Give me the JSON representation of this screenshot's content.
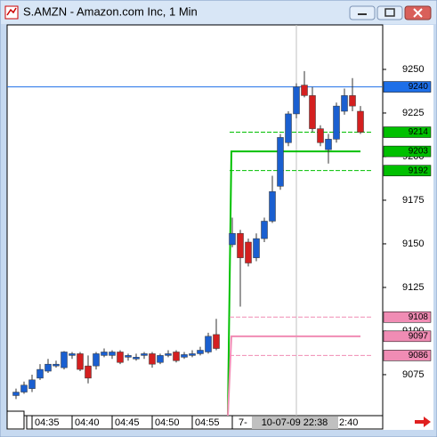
{
  "window": {
    "title": "S.AMZN - Amazon.com Inc, 1 Min"
  },
  "chart_data": {
    "type": "candlestick",
    "open": [
      9063,
      9065,
      9067,
      9073,
      9077,
      9080,
      9079,
      9086,
      9087,
      9080,
      9080,
      9086,
      9086,
      9088,
      9085,
      9084,
      9086,
      9087,
      9082,
      9086,
      9088,
      9085,
      9086,
      9087,
      9088,
      9098,
      null,
      9149.5,
      9156,
      9151,
      9142,
      9153,
      9163,
      9183,
      9208,
      9224.5,
      9241,
      9235,
      9216,
      9204,
      9210,
      9226,
      9235,
      9226
    ],
    "high": [
      9067,
      9071,
      9075,
      9081,
      9084,
      9083,
      9088.5,
      9088,
      9088,
      9086,
      9088,
      9090,
      9089,
      9089,
      9087,
      9087,
      9088,
      9088,
      9087,
      9089,
      9089,
      9088,
      9089,
      9091,
      9099,
      9107,
      null,
      9165,
      9158,
      9153,
      9156,
      9165,
      9189,
      9213,
      9226,
      9242,
      9249,
      9240,
      9218,
      9213,
      9231,
      9239,
      9245,
      9229
    ],
    "low": [
      9061,
      9064,
      9065,
      9072,
      9076,
      9079,
      9078,
      9084,
      9077,
      9070,
      9078,
      9085,
      9084,
      9081,
      9083,
      9083,
      9084,
      9079,
      9081,
      9085,
      9082,
      9084,
      9085,
      9086,
      9087,
      9089,
      null,
      9148,
      9114,
      9137,
      9140,
      9151,
      9162,
      9181,
      9206,
      9222,
      9234,
      9214,
      9206,
      9196,
      9208,
      9224,
      9226,
      9213
    ],
    "close": [
      9065,
      9069,
      9072,
      9078,
      9081,
      9081,
      9088,
      9087,
      9078,
      9073,
      9087,
      9088,
      9088,
      9082,
      9086,
      9085,
      9087,
      9081,
      9086,
      9087,
      9083,
      9086.5,
      9087,
      9089,
      9097,
      9090,
      null,
      9156,
      9142,
      9139,
      9153,
      9163,
      9180,
      9211,
      9224.5,
      9240,
      9235,
      9216,
      9208,
      9210,
      9229,
      9235,
      9229,
      9214
    ],
    "up_color": "#1a5fd0",
    "down_color": "#d42020",
    "ylim": [
      9051.5,
      9275.5
    ],
    "yticks": [
      9250,
      9225,
      9200,
      9175,
      9150,
      9125,
      9100,
      9075
    ],
    "time_labels": [
      "04:35",
      "04:40",
      "04:45",
      "04:50",
      "04:55"
    ],
    "time_fragments": [
      "7-",
      "2:40"
    ],
    "cursor_label": "10-07-09 22:38",
    "levels": [
      {
        "value": 9240,
        "color": "#1e6fe8",
        "style": "solid"
      },
      {
        "value": 9214,
        "color": "#00c000",
        "style": "dashed"
      },
      {
        "value": 9203,
        "color": "#00c000",
        "style": "solid"
      },
      {
        "value": 9192,
        "color": "#00c000",
        "style": "dashed"
      },
      {
        "value": 9108,
        "color": "#f08cb4",
        "style": "dashed"
      },
      {
        "value": 9097,
        "color": "#f08cb4",
        "style": "solid"
      },
      {
        "value": 9086,
        "color": "#f08cb4",
        "style": "dashed"
      }
    ]
  }
}
